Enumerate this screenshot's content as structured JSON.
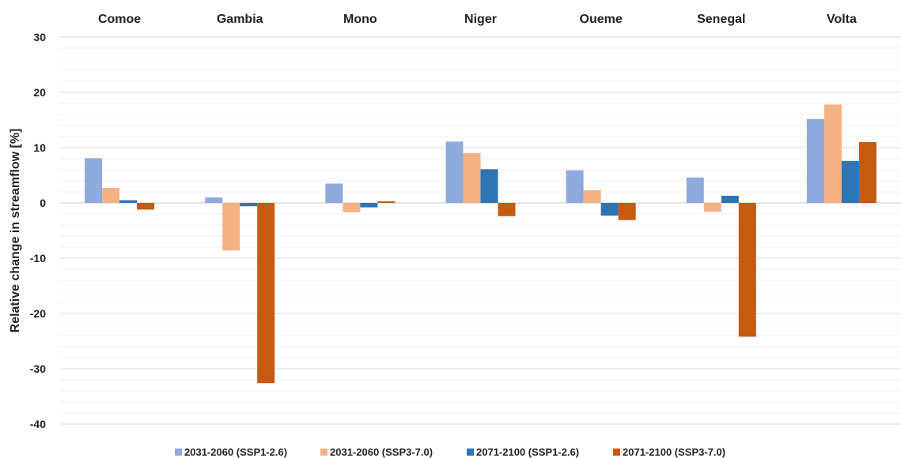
{
  "chart_data": {
    "type": "bar",
    "title": "",
    "xlabel": "",
    "ylabel": "Relative change in streamflow [%]",
    "ylim": [
      -40,
      30
    ],
    "yticks": [
      30,
      20,
      10,
      0,
      -10,
      -20,
      -30,
      -40
    ],
    "minor_grid_step": 2,
    "grid": true,
    "category_labels_position": "top",
    "legend_position": "bottom",
    "categories": [
      "Comoe",
      "Gambia",
      "Mono",
      "Niger",
      "Oueme",
      "Senegal",
      "Volta"
    ],
    "series": [
      {
        "name": "2031-2060 (SSP1-2.6)",
        "color": "#8faadc",
        "values": [
          8.1,
          1.0,
          3.5,
          11.1,
          5.9,
          4.6,
          15.2
        ]
      },
      {
        "name": "2031-2060 (SSP3-7.0)",
        "color": "#f4b183",
        "values": [
          2.7,
          -8.6,
          -1.7,
          9.0,
          2.3,
          -1.6,
          17.8
        ]
      },
      {
        "name": "2071-2100 (SSP1-2.6)",
        "color": "#2e75b6",
        "values": [
          0.5,
          -0.6,
          -0.8,
          6.1,
          -2.3,
          1.3,
          7.6
        ]
      },
      {
        "name": "2071-2100 (SSP3-7.0)",
        "color": "#c55a11",
        "values": [
          -1.2,
          -32.6,
          0.3,
          -2.4,
          -3.1,
          -24.2,
          11.0
        ]
      }
    ]
  }
}
